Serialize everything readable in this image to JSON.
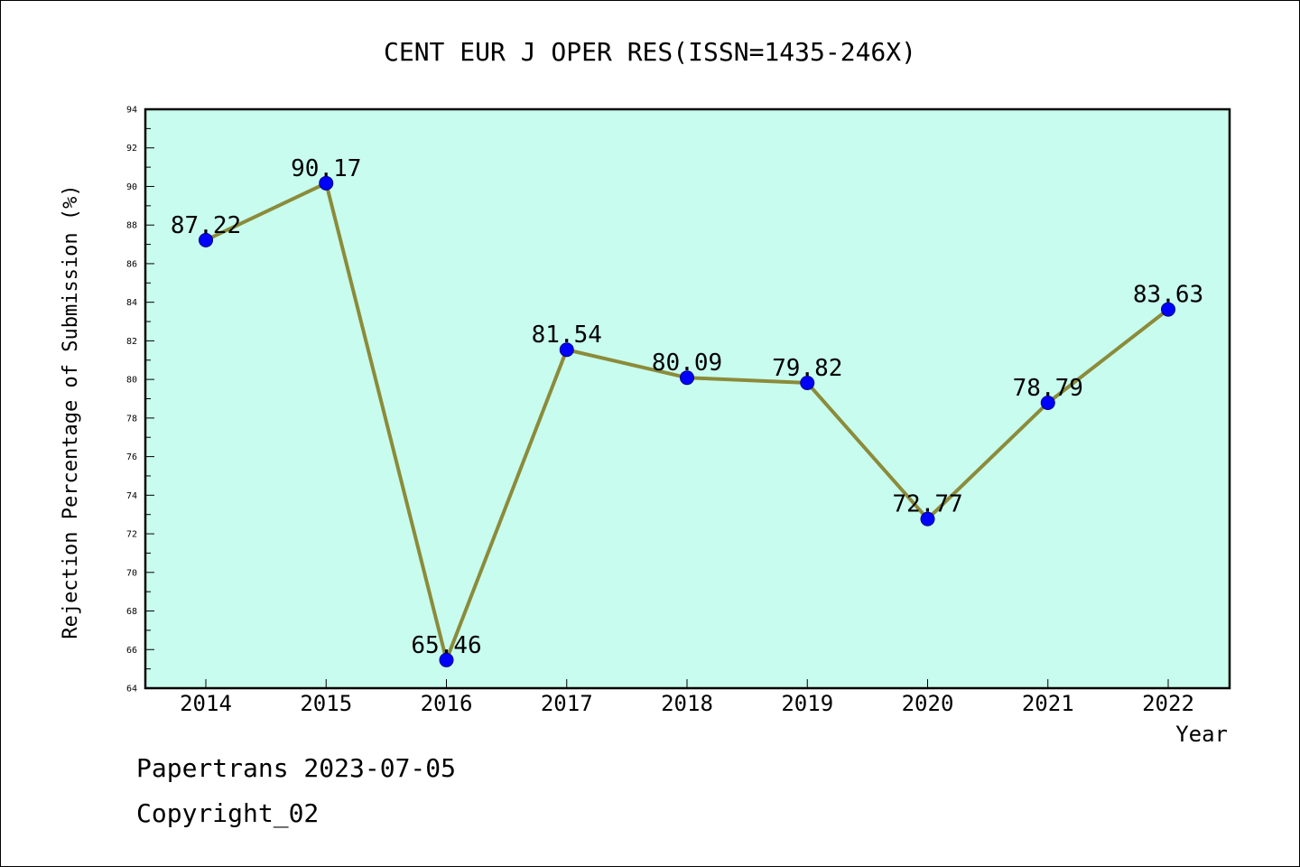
{
  "chart_data": {
    "type": "line",
    "title": "CENT EUR J OPER RES(ISSN=1435-246X)",
    "xlabel": "Year",
    "ylabel": "Rejection Percentage of Submission (%)",
    "categories": [
      "2014",
      "2015",
      "2016",
      "2017",
      "2018",
      "2019",
      "2020",
      "2021",
      "2022"
    ],
    "series": [
      {
        "values": [
          87.22,
          90.17,
          65.46,
          81.54,
          80.09,
          79.82,
          72.77,
          78.79,
          83.63
        ]
      }
    ],
    "data_labels": [
      "87.22",
      "90.17",
      "65.46",
      "81.54",
      "80.09",
      "79.82",
      "72.77",
      "78.79",
      "83.63"
    ],
    "ylim": [
      64,
      94
    ],
    "yticks": [
      "64",
      "66",
      "68",
      "70",
      "72",
      "74",
      "76",
      "78",
      "80",
      "82",
      "84",
      "86",
      "88",
      "90",
      "92",
      "94"
    ],
    "grid": false,
    "legend": "none",
    "colors": {
      "plot_background": "#c8fcee",
      "line": "#8b8b3a",
      "marker": "#0000ff",
      "marker_edge": "#000080"
    }
  },
  "footer": {
    "source": "Papertrans 2023-07-05",
    "copyright": "Copyright_02"
  }
}
